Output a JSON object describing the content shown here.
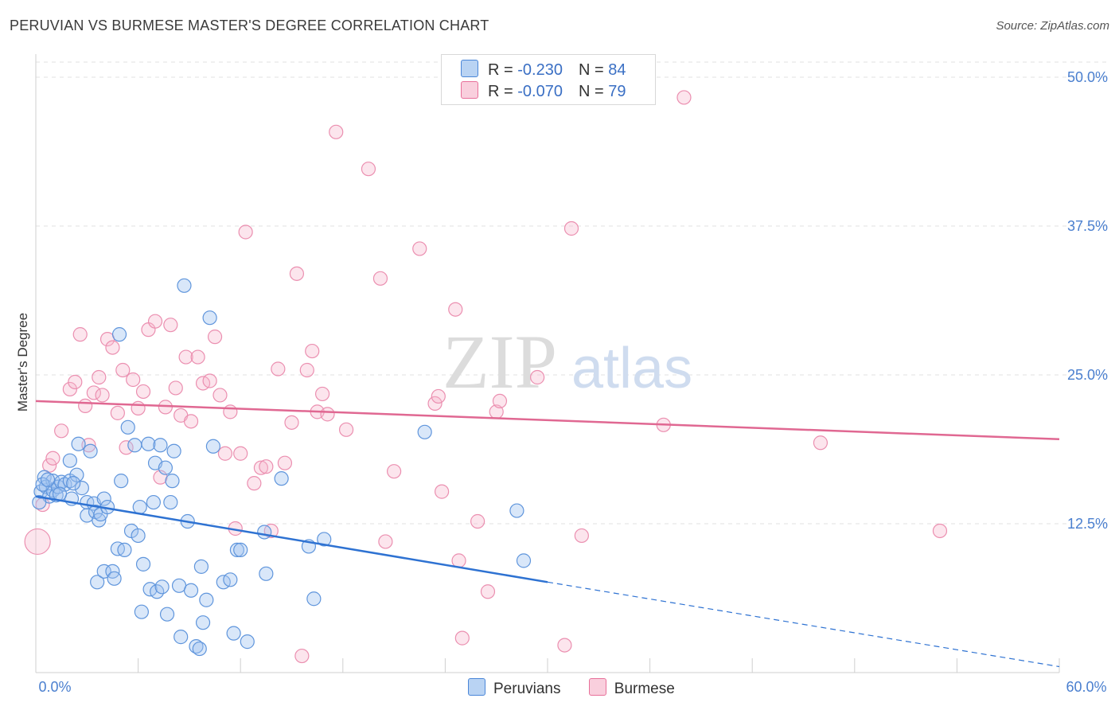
{
  "title": "PERUVIAN VS BURMESE MASTER'S DEGREE CORRELATION CHART",
  "source": "Source: ZipAtlas.com",
  "watermark": {
    "zip": "ZIP",
    "atlas": "atlas"
  },
  "colors": {
    "peruvians": "#4a86d8",
    "burmese": "#e8709a",
    "peruvians_fill": "#a8c8f0",
    "burmese_fill": "#f6bfd2",
    "axis_label": "#4a7fcf"
  },
  "legend": {
    "peruvians": {
      "r_label": "R = ",
      "r_value": "-0.230",
      "n_label": "N = ",
      "n_value": "84"
    },
    "burmese": {
      "r_label": "R = ",
      "r_value": "-0.070",
      "n_label": "N = ",
      "n_value": "79"
    }
  },
  "bottom_legend": {
    "peruvians": "Peruvians",
    "burmese": "Burmese"
  },
  "chart_data": {
    "type": "scatter",
    "title": "PERUVIAN VS BURMESE MASTER'S DEGREE CORRELATION CHART",
    "xlabel": "",
    "ylabel": "Master's Degree",
    "xlim": [
      0,
      60
    ],
    "ylim": [
      0,
      50
    ],
    "x_tick_labels": {
      "left": "0.0%",
      "right": "60.0%"
    },
    "y_ticks": [
      12.5,
      25.0,
      37.5,
      50.0
    ],
    "y_tick_labels": [
      "12.5%",
      "25.0%",
      "37.5%",
      "50.0%"
    ],
    "grid": true,
    "legend_position": "top-center",
    "series": [
      {
        "name": "Peruvians",
        "trend": {
          "x": [
            0,
            30
          ],
          "y": [
            14.8,
            7.6
          ],
          "dashed_to": [
            60,
            0.5
          ]
        },
        "points": [
          [
            0.3,
            15.2
          ],
          [
            0.5,
            16.4
          ],
          [
            0.6,
            15.6
          ],
          [
            0.8,
            14.8
          ],
          [
            1.0,
            16.1
          ],
          [
            1.0,
            15.3
          ],
          [
            1.2,
            14.9
          ],
          [
            1.3,
            15.6
          ],
          [
            1.5,
            16.0
          ],
          [
            1.7,
            15.8
          ],
          [
            2.0,
            17.8
          ],
          [
            2.0,
            16.1
          ],
          [
            2.1,
            14.6
          ],
          [
            2.4,
            16.6
          ],
          [
            2.5,
            19.2
          ],
          [
            2.7,
            15.5
          ],
          [
            3.0,
            14.3
          ],
          [
            3.0,
            13.2
          ],
          [
            3.2,
            18.6
          ],
          [
            3.4,
            14.2
          ],
          [
            3.5,
            13.5
          ],
          [
            3.6,
            7.6
          ],
          [
            3.7,
            12.8
          ],
          [
            3.8,
            13.3
          ],
          [
            4.0,
            14.6
          ],
          [
            4.0,
            8.5
          ],
          [
            4.2,
            13.9
          ],
          [
            4.5,
            8.5
          ],
          [
            4.6,
            7.9
          ],
          [
            4.8,
            10.4
          ],
          [
            4.9,
            28.4
          ],
          [
            5.0,
            16.1
          ],
          [
            5.2,
            10.3
          ],
          [
            5.4,
            20.6
          ],
          [
            5.6,
            11.9
          ],
          [
            5.8,
            19.1
          ],
          [
            6.0,
            11.5
          ],
          [
            6.1,
            13.9
          ],
          [
            6.2,
            5.1
          ],
          [
            6.3,
            9.1
          ],
          [
            6.6,
            19.2
          ],
          [
            6.7,
            7.0
          ],
          [
            6.9,
            14.3
          ],
          [
            7.0,
            17.6
          ],
          [
            7.1,
            6.8
          ],
          [
            7.3,
            19.1
          ],
          [
            7.4,
            7.2
          ],
          [
            7.6,
            17.2
          ],
          [
            7.7,
            4.9
          ],
          [
            7.9,
            14.3
          ],
          [
            8.0,
            16.1
          ],
          [
            8.1,
            18.6
          ],
          [
            8.4,
            7.3
          ],
          [
            8.5,
            3.0
          ],
          [
            8.7,
            32.5
          ],
          [
            8.9,
            12.7
          ],
          [
            9.1,
            6.9
          ],
          [
            9.4,
            2.2
          ],
          [
            9.6,
            2.0
          ],
          [
            9.7,
            8.9
          ],
          [
            9.8,
            4.2
          ],
          [
            10.0,
            6.1
          ],
          [
            10.2,
            29.8
          ],
          [
            10.4,
            19.0
          ],
          [
            11.0,
            7.6
          ],
          [
            11.4,
            7.8
          ],
          [
            11.6,
            3.3
          ],
          [
            11.8,
            10.3
          ],
          [
            12.0,
            10.3
          ],
          [
            12.4,
            2.6
          ],
          [
            13.5,
            8.3
          ],
          [
            13.4,
            11.8
          ],
          [
            14.4,
            16.3
          ],
          [
            16.0,
            10.6
          ],
          [
            16.3,
            6.2
          ],
          [
            16.9,
            11.2
          ],
          [
            22.8,
            20.2
          ],
          [
            28.2,
            13.6
          ],
          [
            28.6,
            9.4
          ],
          [
            0.2,
            14.3
          ],
          [
            0.4,
            15.8
          ],
          [
            0.7,
            16.2
          ],
          [
            1.4,
            15.0
          ],
          [
            2.2,
            15.9
          ]
        ]
      },
      {
        "name": "Burmese",
        "trend": {
          "x": [
            0,
            60
          ],
          "y": [
            22.8,
            19.6
          ]
        },
        "points": [
          [
            0.1,
            11.0
          ],
          [
            0.4,
            14.1
          ],
          [
            0.8,
            17.4
          ],
          [
            1.0,
            18.0
          ],
          [
            1.5,
            20.3
          ],
          [
            2.0,
            23.8
          ],
          [
            2.3,
            24.4
          ],
          [
            2.6,
            28.4
          ],
          [
            2.9,
            22.4
          ],
          [
            3.1,
            19.1
          ],
          [
            3.4,
            23.5
          ],
          [
            3.7,
            24.8
          ],
          [
            3.9,
            23.3
          ],
          [
            4.2,
            28.0
          ],
          [
            4.5,
            27.3
          ],
          [
            4.8,
            21.8
          ],
          [
            5.1,
            25.4
          ],
          [
            5.3,
            18.9
          ],
          [
            5.7,
            24.6
          ],
          [
            6.0,
            22.2
          ],
          [
            6.3,
            23.6
          ],
          [
            6.6,
            28.8
          ],
          [
            7.0,
            29.5
          ],
          [
            7.3,
            16.4
          ],
          [
            7.6,
            22.3
          ],
          [
            7.9,
            29.2
          ],
          [
            8.2,
            23.9
          ],
          [
            8.5,
            21.6
          ],
          [
            8.8,
            26.5
          ],
          [
            9.1,
            21.1
          ],
          [
            9.5,
            26.5
          ],
          [
            9.8,
            24.3
          ],
          [
            10.2,
            24.5
          ],
          [
            10.5,
            28.2
          ],
          [
            10.8,
            23.3
          ],
          [
            11.1,
            18.4
          ],
          [
            11.4,
            21.9
          ],
          [
            11.7,
            12.1
          ],
          [
            12.0,
            18.4
          ],
          [
            12.3,
            37.0
          ],
          [
            12.8,
            15.9
          ],
          [
            13.2,
            17.2
          ],
          [
            13.5,
            17.3
          ],
          [
            13.8,
            11.9
          ],
          [
            14.2,
            25.5
          ],
          [
            14.6,
            17.6
          ],
          [
            15.0,
            21.0
          ],
          [
            15.3,
            33.5
          ],
          [
            15.6,
            1.4
          ],
          [
            15.9,
            25.4
          ],
          [
            16.2,
            27.0
          ],
          [
            16.5,
            21.9
          ],
          [
            16.8,
            23.4
          ],
          [
            17.1,
            21.7
          ],
          [
            17.6,
            45.4
          ],
          [
            18.2,
            20.4
          ],
          [
            19.5,
            42.3
          ],
          [
            20.2,
            33.1
          ],
          [
            20.5,
            11.0
          ],
          [
            21.0,
            16.9
          ],
          [
            22.5,
            35.6
          ],
          [
            23.4,
            22.6
          ],
          [
            23.6,
            23.2
          ],
          [
            23.8,
            15.2
          ],
          [
            24.6,
            30.5
          ],
          [
            24.8,
            9.4
          ],
          [
            25.0,
            2.9
          ],
          [
            25.9,
            12.7
          ],
          [
            26.5,
            6.8
          ],
          [
            27.0,
            21.9
          ],
          [
            27.2,
            22.8
          ],
          [
            29.4,
            24.8
          ],
          [
            31.0,
            2.3
          ],
          [
            31.4,
            37.3
          ],
          [
            32.0,
            11.5
          ],
          [
            36.8,
            20.8
          ],
          [
            38.0,
            48.3
          ],
          [
            46.0,
            19.3
          ],
          [
            53.0,
            11.9
          ]
        ]
      }
    ]
  }
}
